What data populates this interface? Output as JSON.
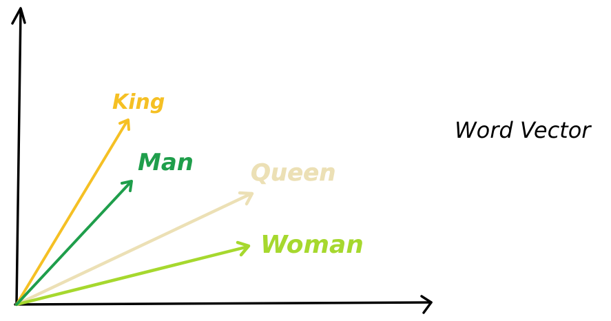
{
  "title": "Word Vector",
  "vectors": [
    {
      "label": "King",
      "color": "#f5c024"
    },
    {
      "label": "Man",
      "color": "#1f9e4b"
    },
    {
      "label": "Queen",
      "color": "#ece0b5"
    },
    {
      "label": "Woman",
      "color": "#a6d82e"
    }
  ],
  "colors": {
    "axis": "#000000",
    "background": "#ffffff"
  }
}
